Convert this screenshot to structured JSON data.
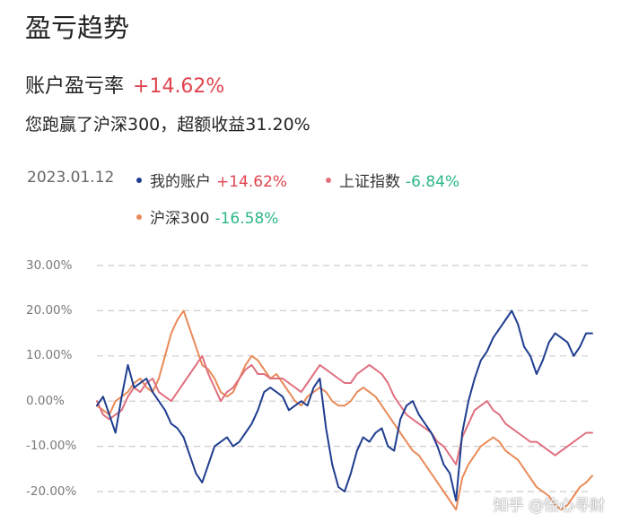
{
  "header": {
    "title": "盈亏趋势"
  },
  "summary": {
    "rate_label": "账户盈亏率",
    "rate_value": "+14.62%",
    "beat_text": "您跑赢了沪深300，超额收益31.20%"
  },
  "legend": {
    "date": "2023.01.12",
    "items": [
      {
        "name": "我的账户",
        "value": "+14.62%",
        "color": "#1f3d8f"
      },
      {
        "name": "上证指数",
        "value": "-6.84%",
        "color": "#e0707f"
      },
      {
        "name": "沪深300",
        "value": "-16.58%",
        "color": "#e98a58"
      }
    ]
  },
  "colors": {
    "positive": "#e0454f",
    "negative": "#2bb68a",
    "grid": "#cccccc"
  },
  "watermark": "知乎 @怡心寻财",
  "chart_data": {
    "type": "line",
    "ylim": [
      -22,
      30
    ],
    "yticks": [
      "30.00%",
      "20.00%",
      "10.00%",
      "0.00%",
      "-10.00%",
      "-20.00%"
    ],
    "ytick_values": [
      30,
      20,
      10,
      0,
      -10,
      -20
    ],
    "grid": true,
    "legend_position": "top",
    "x": [
      0,
      3,
      6,
      9,
      12,
      15,
      18,
      21,
      24,
      27,
      30,
      33,
      36,
      39,
      42,
      45,
      48,
      51,
      54,
      57,
      60,
      63,
      66,
      69,
      72,
      75,
      78,
      81,
      84,
      87,
      90,
      93,
      96,
      99,
      102,
      105,
      108,
      111,
      114,
      117,
      120,
      123,
      126,
      129,
      132,
      135,
      138,
      141,
      144,
      147,
      150,
      153,
      156,
      159,
      162,
      165,
      168,
      171,
      174,
      177,
      180,
      183,
      186,
      189,
      192,
      195,
      198,
      201,
      204,
      207,
      210,
      213,
      216,
      219,
      222,
      225,
      228,
      231,
      234,
      237,
      240
    ],
    "series": [
      {
        "name": "我的账户",
        "color": "#1f3d8f",
        "values": [
          -1,
          1,
          -3,
          -7,
          1,
          8,
          3,
          4,
          5,
          2,
          0,
          -2,
          -5,
          -6,
          -8,
          -12,
          -16,
          -18,
          -14,
          -10,
          -9,
          -8,
          -10,
          -9,
          -7,
          -5,
          -2,
          2,
          3,
          2,
          1,
          -2,
          -1,
          0,
          -1,
          3,
          5,
          -6,
          -14,
          -19,
          -20,
          -16,
          -11,
          -8,
          -9,
          -7,
          -6,
          -10,
          -11,
          -4,
          -1,
          0,
          -3,
          -5,
          -7,
          -10,
          -14,
          -16,
          -22,
          -7,
          0,
          5,
          9,
          11,
          14,
          16,
          18,
          20,
          17,
          12,
          10,
          6,
          9,
          13,
          15,
          14,
          13,
          10,
          12,
          15,
          15
        ]
      },
      {
        "name": "上证指数",
        "color": "#e0707f",
        "values": [
          0,
          -3,
          -4,
          -3,
          -2,
          1,
          3,
          2,
          4,
          5,
          2,
          1,
          0,
          2,
          4,
          6,
          8,
          10,
          6,
          3,
          0,
          2,
          3,
          5,
          7,
          8,
          6,
          6,
          5,
          5,
          5,
          4,
          3,
          2,
          4,
          6,
          8,
          7,
          6,
          5,
          4,
          4,
          6,
          7,
          8,
          7,
          6,
          4,
          1,
          -1,
          -3,
          -4,
          -5,
          -6,
          -7,
          -9,
          -10,
          -12,
          -14,
          -8,
          -5,
          -2,
          -1,
          0,
          -2,
          -3,
          -5,
          -6,
          -7,
          -8,
          -9,
          -9,
          -10,
          -11,
          -12,
          -11,
          -10,
          -9,
          -8,
          -7,
          -7
        ]
      },
      {
        "name": "沪深300",
        "color": "#e98a58",
        "values": [
          -1,
          -2,
          -3,
          0,
          1,
          2,
          4,
          5,
          3,
          2,
          5,
          10,
          15,
          18,
          20,
          16,
          12,
          8,
          7,
          5,
          2,
          1,
          2,
          5,
          8,
          10,
          9,
          7,
          5,
          6,
          4,
          2,
          0,
          -1,
          1,
          2,
          3,
          2,
          0,
          -1,
          -1,
          0,
          2,
          3,
          2,
          1,
          -1,
          -3,
          -5,
          -7,
          -9,
          -11,
          -12,
          -14,
          -16,
          -18,
          -20,
          -22,
          -24,
          -17,
          -14,
          -12,
          -10,
          -9,
          -8,
          -9,
          -11,
          -12,
          -13,
          -15,
          -17,
          -19,
          -20,
          -21,
          -23,
          -24,
          -23,
          -21,
          -19,
          -18,
          -16.5
        ]
      }
    ]
  }
}
